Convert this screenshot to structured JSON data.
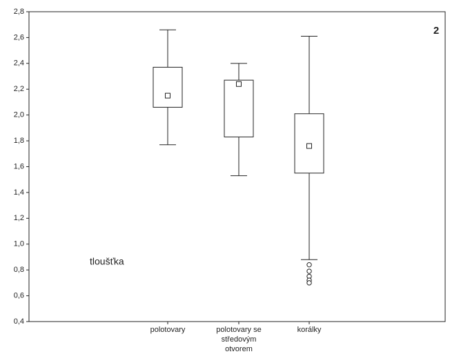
{
  "chart_data": {
    "type": "box",
    "annotations": [
      "tloušťka",
      "2"
    ],
    "categories": [
      "polotovary",
      "polotovary se středovým otvorem",
      "korálky"
    ],
    "boxes": [
      {
        "whisker_low": 1.77,
        "q1": 2.06,
        "median": 2.15,
        "q3": 2.37,
        "whisker_high": 2.66,
        "outliers": []
      },
      {
        "whisker_low": 1.53,
        "q1": 1.83,
        "median": 2.24,
        "q3": 2.27,
        "whisker_high": 2.4,
        "outliers": []
      },
      {
        "whisker_low": 0.88,
        "q1": 1.55,
        "median": 1.76,
        "q3": 2.01,
        "whisker_high": 2.61,
        "outliers": [
          0.84,
          0.79,
          0.75,
          0.72,
          0.7
        ]
      }
    ],
    "color": "#222222",
    "ylim": [
      0.4,
      2.8
    ],
    "yticks": [
      {
        "value": 0.4,
        "label": "0,4"
      },
      {
        "value": 0.6,
        "label": "0,6"
      },
      {
        "value": 0.8,
        "label": "0,8"
      },
      {
        "value": 1.0,
        "label": "1,0"
      },
      {
        "value": 1.2,
        "label": "1,2"
      },
      {
        "value": 1.4,
        "label": "1,4"
      },
      {
        "value": 1.6,
        "label": "1,6"
      },
      {
        "value": 1.8,
        "label": "1,8"
      },
      {
        "value": 2.0,
        "label": "2,0"
      },
      {
        "value": 2.2,
        "label": "2,2"
      },
      {
        "value": 2.4,
        "label": "2,4"
      },
      {
        "value": 2.6,
        "label": "2,6"
      },
      {
        "value": 2.8,
        "label": "2,8"
      }
    ],
    "grid": false
  }
}
